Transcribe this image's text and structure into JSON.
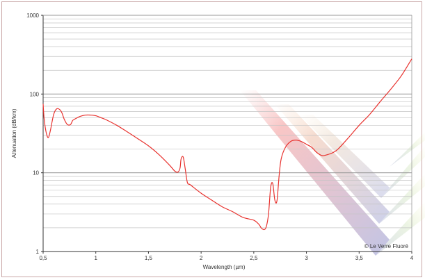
{
  "chart_data": {
    "type": "line",
    "xlabel": "Wavelength (µm)",
    "ylabel": "Attenuation (dB/km)",
    "xlim": [
      0.5,
      4
    ],
    "ylim": [
      1,
      1000
    ],
    "yscale": "log",
    "x_ticks": [
      "0,5",
      "1",
      "1,5",
      "2",
      "2,5",
      "3",
      "3,5",
      "4"
    ],
    "x_tick_values": [
      0.5,
      1,
      1.5,
      2,
      2.5,
      3,
      3.5,
      4
    ],
    "y_ticks": [
      "1",
      "10",
      "100",
      "1000"
    ],
    "y_tick_values": [
      1,
      10,
      100,
      1000
    ],
    "grid": "horizontal minor log lines",
    "series": [
      {
        "color": "#e8322e",
        "x": [
          0.5,
          0.51,
          0.53,
          0.55,
          0.57,
          0.6,
          0.63,
          0.66,
          0.68,
          0.7,
          0.73,
          0.76,
          0.78,
          0.8,
          0.85,
          0.9,
          0.95,
          1.0,
          1.05,
          1.1,
          1.2,
          1.3,
          1.4,
          1.5,
          1.6,
          1.7,
          1.75,
          1.78,
          1.8,
          1.81,
          1.83,
          1.85,
          1.87,
          1.9,
          2.0,
          2.1,
          2.2,
          2.3,
          2.4,
          2.5,
          2.55,
          2.57,
          2.6,
          2.62,
          2.64,
          2.66,
          2.68,
          2.7,
          2.72,
          2.74,
          2.76,
          2.8,
          2.85,
          2.9,
          2.95,
          3.0,
          3.05,
          3.1,
          3.15,
          3.2,
          3.25,
          3.3,
          3.4,
          3.5,
          3.6,
          3.7,
          3.8,
          3.9,
          4.0
        ],
        "values": [
          75,
          48,
          32,
          28,
          35,
          55,
          65,
          63,
          57,
          48,
          41,
          41,
          46,
          48,
          52,
          54,
          54,
          53,
          50,
          47,
          40,
          33,
          27,
          22,
          17,
          12.5,
          10.5,
          10.2,
          11.5,
          15,
          15.8,
          11,
          7.5,
          7.0,
          5.5,
          4.5,
          3.7,
          3.2,
          2.7,
          2.5,
          2.2,
          2.0,
          1.9,
          2.1,
          3.0,
          6.5,
          7.3,
          4.5,
          4.4,
          9,
          15,
          21,
          25,
          26,
          25,
          23,
          21,
          18,
          16.5,
          17,
          18,
          20,
          28,
          40,
          55,
          80,
          115,
          170,
          280
        ]
      }
    ]
  },
  "copyright": "© Le Verre Fluoré"
}
